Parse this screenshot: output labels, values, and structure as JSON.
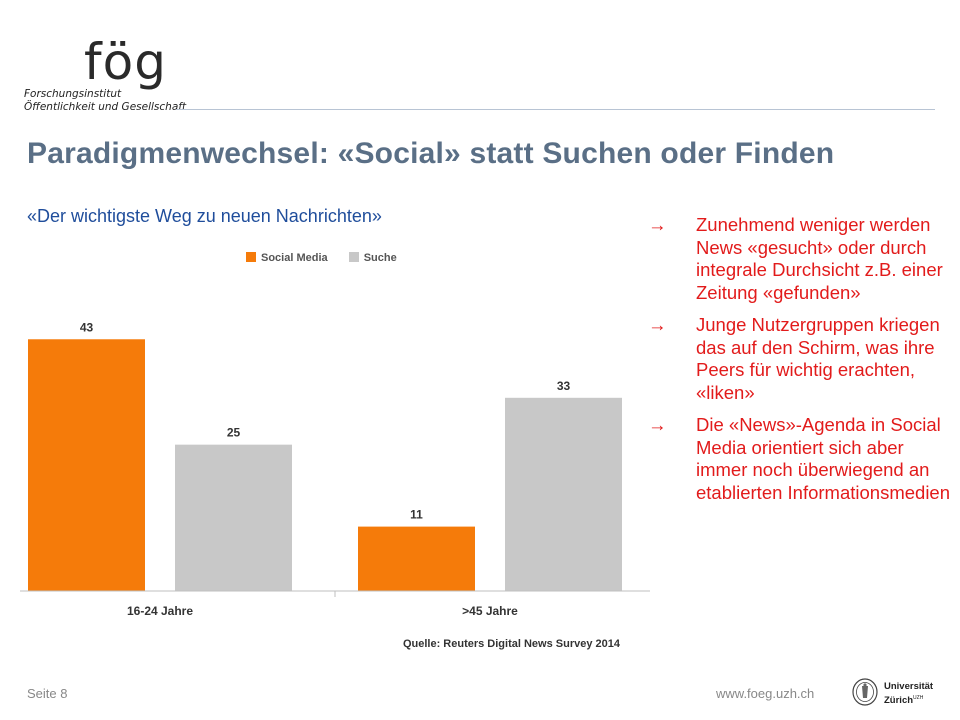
{
  "logo": {
    "mark": "fög",
    "line1": "Forschungsinstitut",
    "line2": "Öffentlichkeit und Gesellschaft"
  },
  "title": "Paradigmenwechsel: «Social» statt Suchen oder Finden",
  "subtitle": "«Der wichtigste Weg zu neuen Nachrichten»",
  "source": "Quelle: Reuters Digital News Survey 2014",
  "bullets": [
    {
      "arrow": "→",
      "text": "Zunehmend weniger werden News «gesucht» oder durch integrale Durchsicht z.B. einer Zeitung «gefunden»"
    },
    {
      "arrow": "→",
      "text": "Junge Nutzergruppen kriegen das auf den Schirm, was ihre Peers für wichtig erachten, «liken»"
    },
    {
      "arrow": "→",
      "text": "Die «News»-Agenda in Social Media orientiert sich aber immer noch überwiegend an etablierten Informationsmedien"
    }
  ],
  "footer": {
    "page": "Seite 8",
    "url": "www.foeg.uzh.ch",
    "university_line1": "Universität",
    "university_line2": "Zürich",
    "university_sup": "UZH"
  },
  "colors": {
    "title": "#5a6f86",
    "subtitle": "#1f4d9b",
    "bullets": "#e21b1b",
    "social_media": "#f57b0a",
    "suche": "#c8c8c8"
  },
  "chart_data": {
    "type": "bar",
    "categories": [
      "16-24 Jahre",
      ">45 Jahre"
    ],
    "series": [
      {
        "name": "Social Media",
        "values": [
          43,
          11
        ],
        "color": "#f57b0a"
      },
      {
        "name": "Suche",
        "values": [
          25,
          33
        ],
        "color": "#c8c8c8"
      }
    ],
    "ylim": [
      0,
      48
    ],
    "legend_position": "top",
    "grid": false,
    "data_labels": true
  }
}
